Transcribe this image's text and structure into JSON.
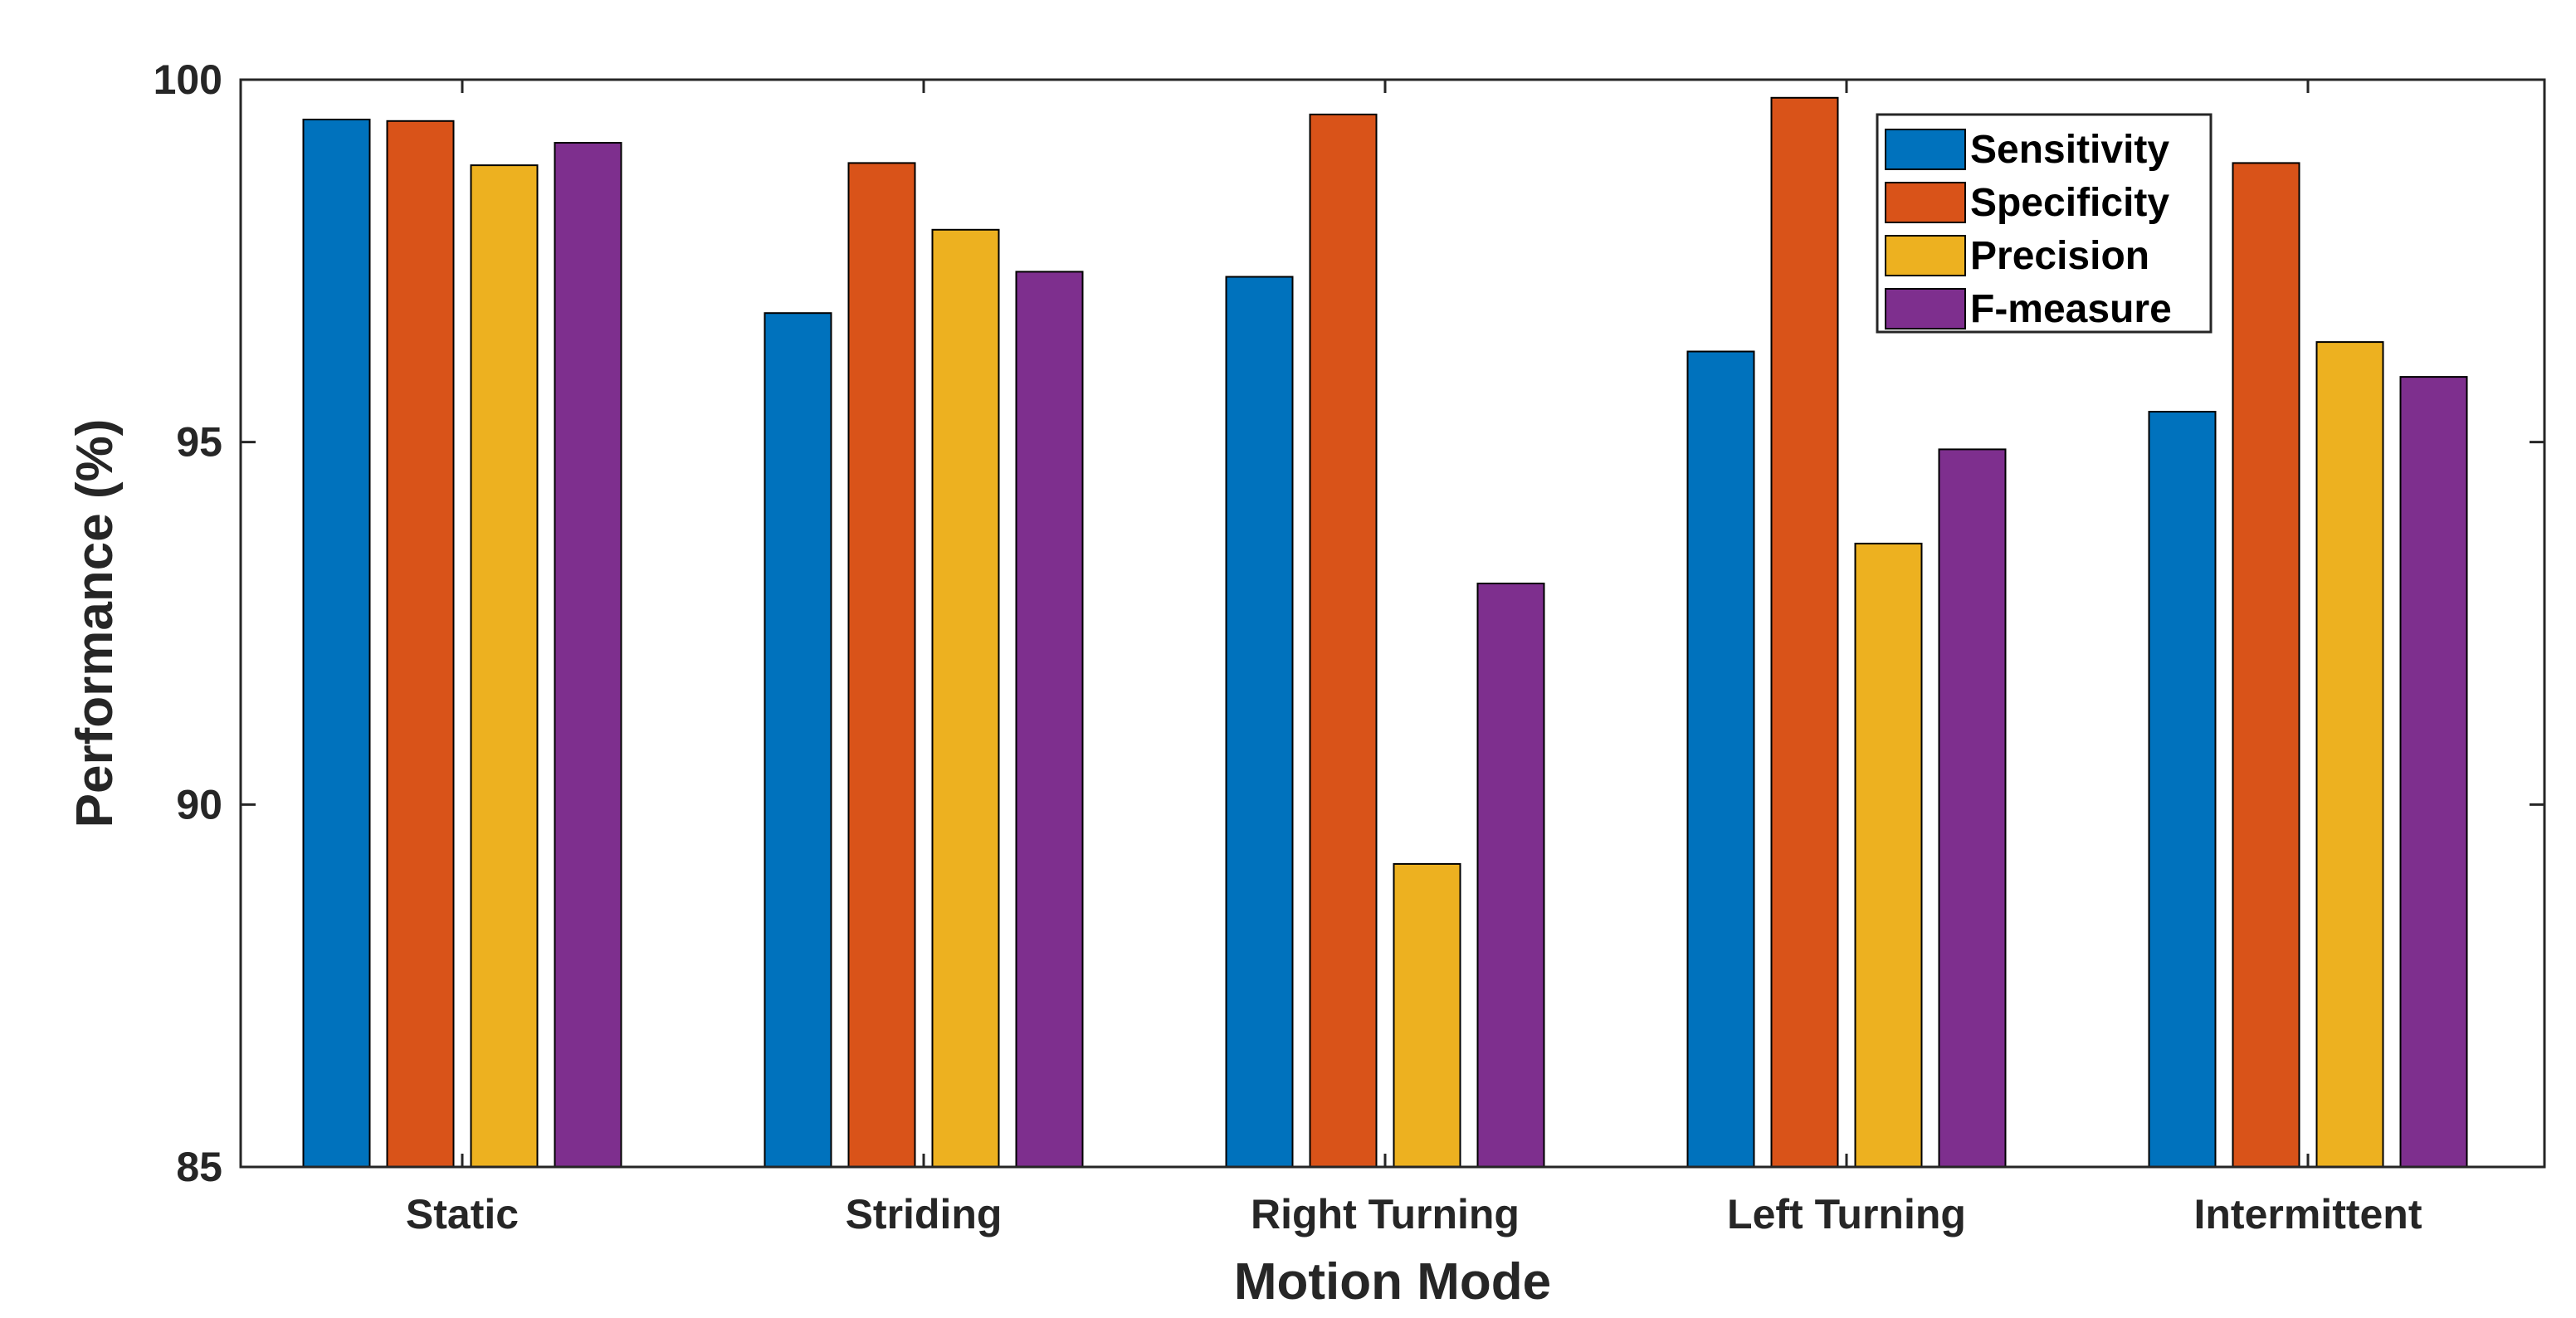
{
  "chart_data": {
    "type": "bar",
    "title": "",
    "xlabel": "Motion Mode",
    "ylabel": "Performance (%)",
    "ylim": [
      85,
      100
    ],
    "yticks": [
      85,
      90,
      95,
      100
    ],
    "grid": false,
    "legend_position": "top-right",
    "categories": [
      "Static",
      "Striding",
      "Right Turning",
      "Left Turning",
      "Intermittent"
    ],
    "series": [
      {
        "name": "Sensitivity",
        "color": "#0072BD",
        "values": [
          99.45,
          96.78,
          97.28,
          96.25,
          95.42
        ]
      },
      {
        "name": "Specificity",
        "color": "#D95319",
        "values": [
          99.43,
          98.85,
          99.52,
          99.75,
          98.85
        ]
      },
      {
        "name": "Precision",
        "color": "#EDB120",
        "values": [
          98.82,
          97.93,
          89.18,
          93.6,
          96.38
        ]
      },
      {
        "name": "F-measure",
        "color": "#7E2F8E",
        "values": [
          99.13,
          97.35,
          93.05,
          94.9,
          95.9
        ]
      }
    ]
  }
}
